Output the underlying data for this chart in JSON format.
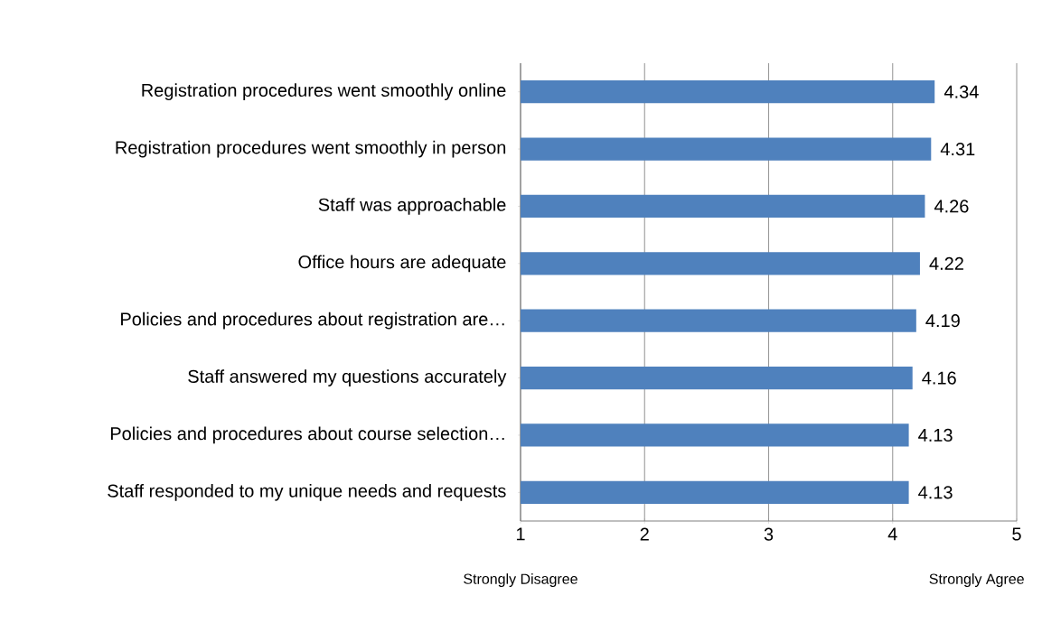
{
  "chart_data": {
    "type": "bar",
    "orientation": "horizontal",
    "categories": [
      "Registration procedures went smoothly online",
      "Registration procedures went smoothly in person",
      "Staff was approachable",
      "Office hours are adequate",
      "Policies and procedures about registration are…",
      "Staff answered my questions accurately",
      "Policies and procedures about course selection…",
      "Staff responded to my unique needs and requests"
    ],
    "values": [
      4.34,
      4.31,
      4.26,
      4.22,
      4.19,
      4.16,
      4.13,
      4.13
    ],
    "color": "#4f81bd",
    "xlim": [
      1,
      5
    ],
    "xticks": [
      1,
      2,
      3,
      4,
      5
    ],
    "grid": "x",
    "data_labels": true,
    "annotations": [
      "Strongly Disagree",
      "Strongly Agree"
    ]
  }
}
